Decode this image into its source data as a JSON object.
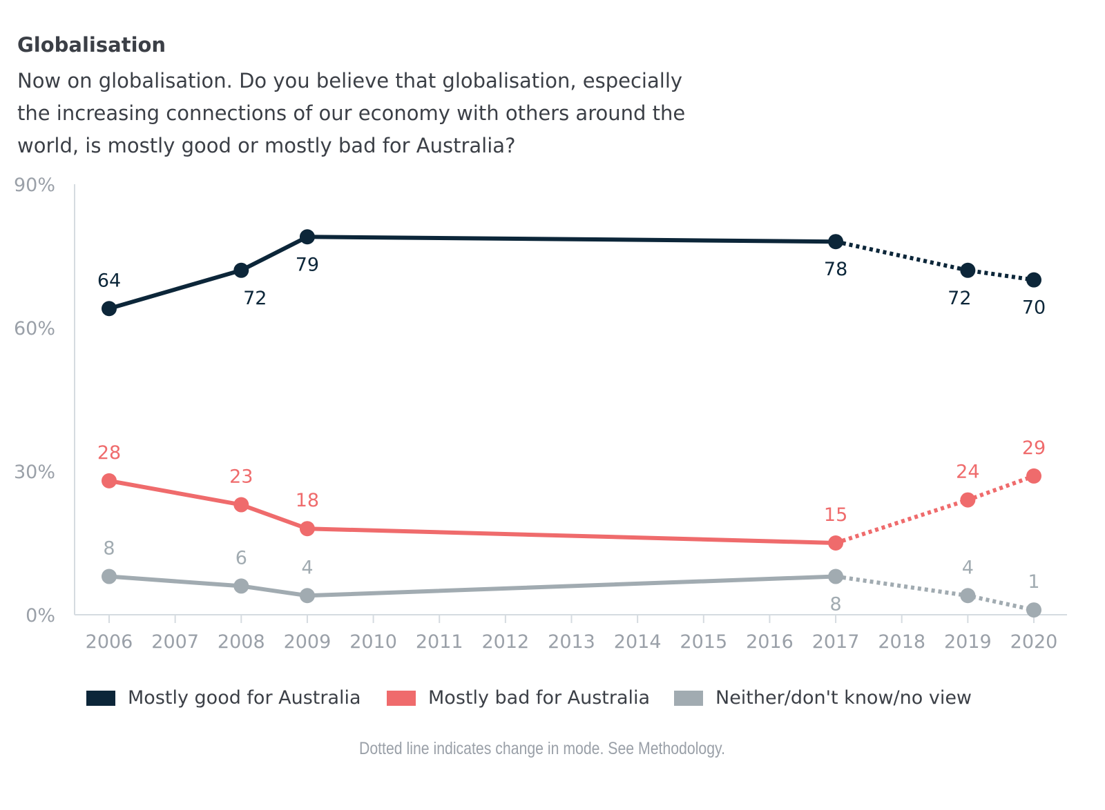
{
  "chart_data": {
    "type": "line",
    "title": "Globalisation",
    "subtitle": "Now on globalisation. Do you believe that globalisation, especially the increasing connections of our economy with others around the world, is mostly good or mostly bad for Australia?",
    "x_ticks": [
      "2006",
      "2007",
      "2008",
      "2009",
      "2010",
      "2011",
      "2012",
      "2013",
      "2014",
      "2015",
      "2016",
      "2017",
      "2018",
      "2019",
      "2020"
    ],
    "y_ticks": [
      "0%",
      "30%",
      "60%",
      "90%"
    ],
    "ylim": [
      0,
      90
    ],
    "xlim": [
      2006,
      2020
    ],
    "grid": false,
    "legend_position": "bottom",
    "dotted_from": 2017,
    "series": [
      {
        "name": "Mostly good for Australia",
        "color": "#0c2639",
        "x": [
          2006,
          2008,
          2009,
          2017,
          2019,
          2020
        ],
        "values": [
          64,
          72,
          79,
          78,
          72,
          70
        ],
        "label_pos": [
          "above",
          "below",
          "below",
          "below",
          "below",
          "below"
        ]
      },
      {
        "name": "Mostly bad for Australia",
        "color": "#ef6b6c",
        "x": [
          2006,
          2008,
          2009,
          2017,
          2019,
          2020
        ],
        "values": [
          28,
          23,
          18,
          15,
          24,
          29
        ],
        "label_pos": [
          "above",
          "above",
          "above",
          "above",
          "above",
          "above"
        ]
      },
      {
        "name": "Neither/don't know/no view",
        "color": "#a1abb1",
        "x": [
          2006,
          2008,
          2009,
          2017,
          2019,
          2020
        ],
        "values": [
          8,
          6,
          4,
          8,
          4,
          1
        ],
        "label_pos": [
          "above",
          "above",
          "above",
          "below",
          "above",
          "above"
        ]
      }
    ],
    "note": "Dotted line indicates change in mode. See Methodology."
  }
}
